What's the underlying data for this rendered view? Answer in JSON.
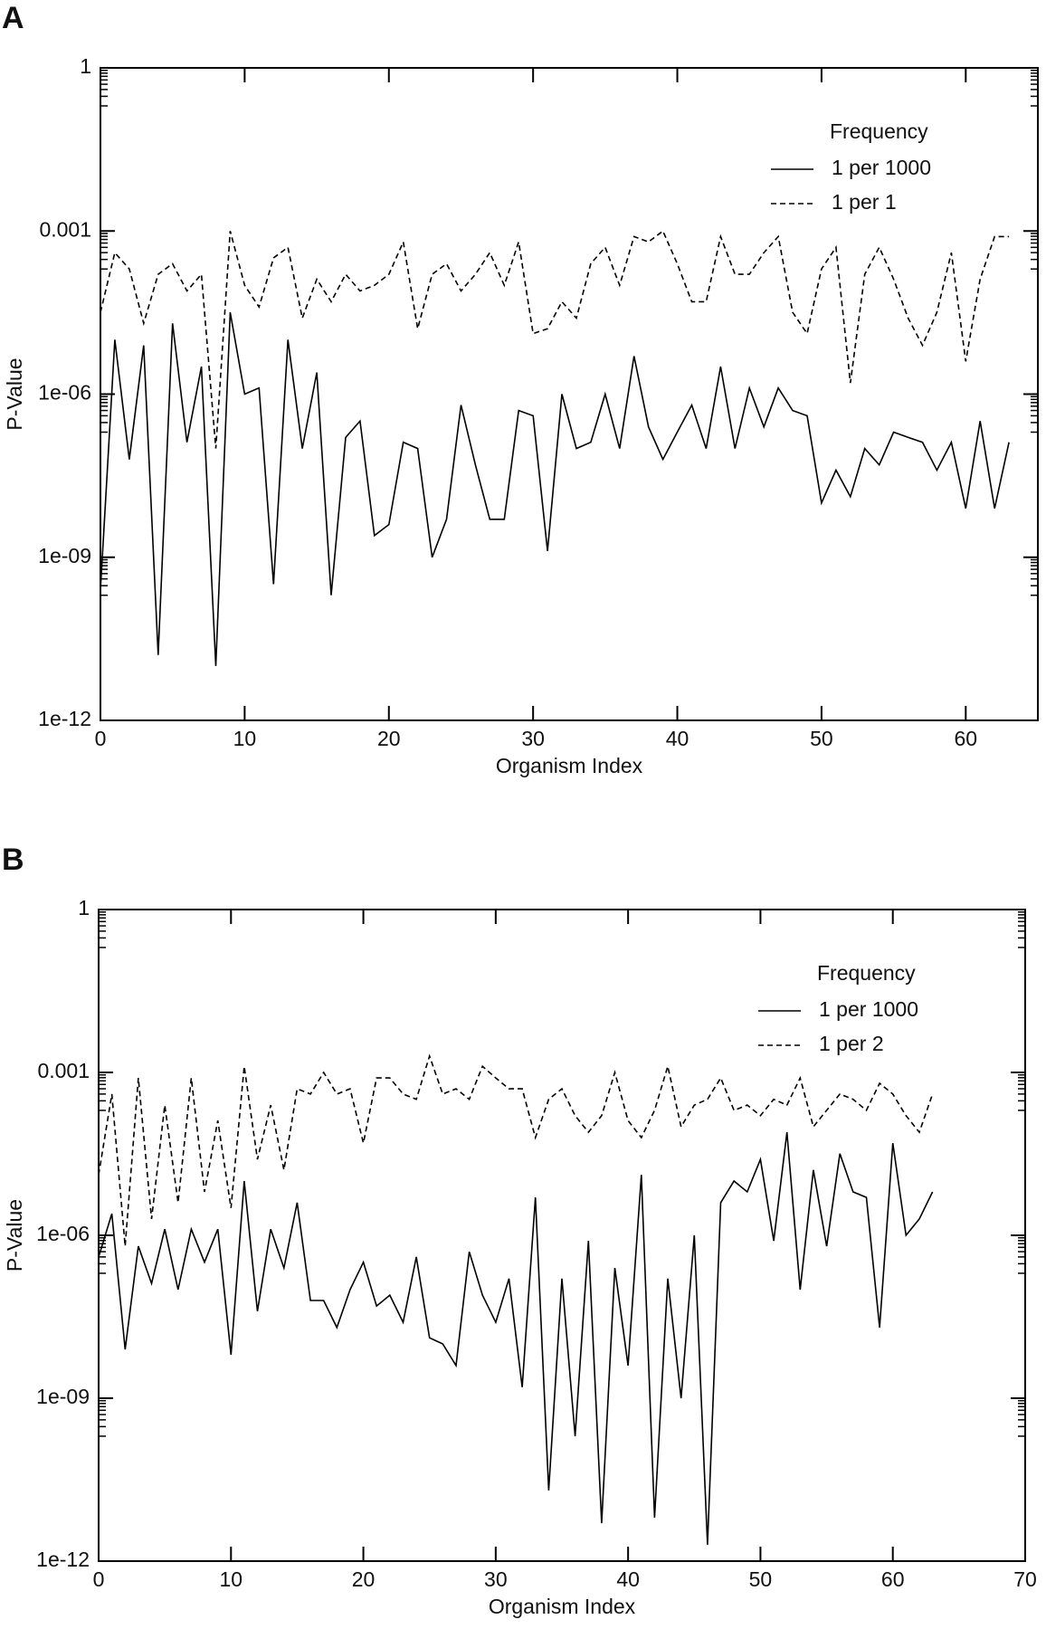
{
  "chart_data": [
    {
      "type": "line",
      "panel_label": "A",
      "xlabel": "Organism Index",
      "ylabel": "P-Value",
      "log_y": true,
      "legend_title": "Frequency",
      "legend": "upper right",
      "xlim": [
        0,
        65
      ],
      "xticks": [
        0,
        10,
        20,
        30,
        40,
        50,
        60
      ],
      "ylim": [
        1e-12,
        1
      ],
      "yticks": [
        {
          "value": 1e-12,
          "label": "1e-12"
        },
        {
          "value": 1e-09,
          "label": "1e-09"
        },
        {
          "value": 1e-06,
          "label": "1e-06"
        },
        0.001,
        1
      ],
      "x": [
        0,
        1,
        2,
        3,
        4,
        5,
        6,
        7,
        8,
        9,
        10,
        11,
        12,
        13,
        14,
        15,
        16,
        17,
        18,
        19,
        20,
        21,
        22,
        23,
        24,
        25,
        26,
        27,
        28,
        29,
        30,
        31,
        32,
        33,
        34,
        35,
        36,
        37,
        38,
        39,
        40,
        41,
        42,
        43,
        44,
        45,
        46,
        47,
        48,
        49,
        50,
        51,
        52,
        53,
        54,
        55,
        56,
        57,
        58,
        59,
        60,
        61,
        62,
        63
      ],
      "series": [
        {
          "name": "1 per 1000",
          "color": "#000000",
          "line_style": "solid",
          "values": [
            2.5e-10,
            1e-05,
            6.3e-08,
            7.9e-06,
            1.6e-11,
            2e-05,
            1.3e-07,
            3.2e-06,
            1e-11,
            3.2e-05,
            1e-06,
            1.3e-06,
            3.2e-10,
            1e-05,
            1e-07,
            2.5e-06,
            2e-10,
            1.6e-07,
            3.2e-07,
            2.5e-09,
            4e-09,
            1.3e-07,
            1e-07,
            1e-09,
            5e-09,
            6.3e-07,
            5e-08,
            5e-09,
            5e-09,
            5e-07,
            4e-07,
            1.3e-09,
            1e-06,
            1e-07,
            1.3e-07,
            1e-06,
            1e-07,
            5e-06,
            2.5e-07,
            6.3e-08,
            2e-07,
            6.3e-07,
            1e-07,
            3.2e-06,
            1e-07,
            1.3e-06,
            2.5e-07,
            1.3e-06,
            5e-07,
            4e-07,
            1e-08,
            4e-08,
            1.3e-08,
            1e-07,
            5e-08,
            2e-07,
            1.6e-07,
            1.3e-07,
            4e-08,
            1.3e-07,
            7.9e-09,
            3.2e-07,
            7.9e-09,
            1.3e-07
          ]
        },
        {
          "name": "1 per 1",
          "color": "#000000",
          "line_style": "dashed",
          "values": [
            3.2e-05,
            0.0004,
            0.0002,
            2e-05,
            0.00016,
            0.00025,
            7.9e-05,
            0.00016,
            1e-07,
            0.001,
            0.0001,
            4e-05,
            0.00032,
            0.0005,
            2.5e-05,
            0.00013,
            5e-05,
            0.00016,
            7.9e-05,
            0.0001,
            0.00016,
            0.00063,
            1.6e-05,
            0.00016,
            0.00025,
            7.9e-05,
            0.00016,
            0.0004,
            0.0001,
            0.00063,
            1.3e-05,
            1.6e-05,
            5e-05,
            2.5e-05,
            0.00025,
            0.0005,
            0.0001,
            0.00079,
            0.00063,
            0.001,
            0.00025,
            5e-05,
            5e-05,
            0.00079,
            0.00016,
            0.00016,
            0.0004,
            0.00079,
            3.2e-05,
            1.3e-05,
            0.0002,
            0.0005,
            1.6e-06,
            0.00016,
            0.0005,
            0.00013,
            2.5e-05,
            7.9e-06,
            3.2e-05,
            0.0004,
            4e-06,
            0.00013,
            0.00079,
            0.00079
          ]
        }
      ]
    },
    {
      "type": "line",
      "panel_label": "B",
      "xlabel": "Organism Index",
      "ylabel": "P-Value",
      "log_y": true,
      "legend_title": "Frequency",
      "legend": "upper right",
      "xlim": [
        0,
        70
      ],
      "xticks": [
        0,
        10,
        20,
        30,
        40,
        50,
        60,
        70
      ],
      "ylim": [
        1e-12,
        1
      ],
      "yticks": [
        {
          "value": 1e-12,
          "label": "1e-12"
        },
        {
          "value": 1e-09,
          "label": "1e-09"
        },
        {
          "value": 1e-06,
          "label": "1e-06"
        },
        0.001,
        1
      ],
      "x": [
        0,
        1,
        2,
        3,
        4,
        5,
        6,
        7,
        8,
        9,
        10,
        11,
        12,
        13,
        14,
        15,
        16,
        17,
        18,
        19,
        20,
        21,
        22,
        23,
        24,
        25,
        26,
        27,
        28,
        29,
        30,
        31,
        32,
        33,
        34,
        35,
        36,
        37,
        38,
        39,
        40,
        41,
        42,
        43,
        44,
        45,
        46,
        47,
        48,
        49,
        50,
        51,
        52,
        53,
        54,
        55,
        56,
        57,
        58,
        59,
        60,
        61,
        62,
        63
      ],
      "series": [
        {
          "name": "1 per 1000",
          "color": "#000000",
          "line_style": "solid",
          "values": [
            4e-07,
            2.5e-06,
            7.9e-09,
            6.3e-07,
            1.3e-07,
            1.3e-06,
            1e-07,
            1.3e-06,
            3.2e-07,
            1.3e-06,
            6.3e-09,
            1e-05,
            4e-08,
            1.3e-06,
            2.5e-07,
            4e-06,
            6.3e-08,
            6.3e-08,
            2e-08,
            1e-07,
            3.2e-07,
            5e-08,
            7.9e-08,
            2.5e-08,
            4e-07,
            1.3e-08,
            1e-08,
            4e-09,
            5e-07,
            7.9e-08,
            2.5e-08,
            1.6e-07,
            1.6e-09,
            5e-06,
            2e-11,
            1.6e-07,
            2e-10,
            7.9e-07,
            5e-12,
            2.5e-07,
            4e-09,
            1.3e-05,
            6.3e-12,
            1.6e-07,
            1e-09,
            1e-06,
            2e-12,
            4e-06,
            1e-05,
            6.3e-06,
            2.5e-05,
            7.9e-07,
            7.9e-05,
            1e-07,
            1.6e-05,
            6.3e-07,
            3.2e-05,
            6.3e-06,
            5e-06,
            2e-08,
            5e-05,
            1e-06,
            2e-06,
            6.3e-06
          ]
        },
        {
          "name": "1 per 2",
          "color": "#000000",
          "line_style": "dashed",
          "values": [
            1.3e-05,
            0.0004,
            6.3e-07,
            0.00079,
            2e-06,
            0.00025,
            4e-06,
            0.00079,
            6.3e-06,
            0.00013,
            3.2e-06,
            0.0013,
            2.5e-05,
            0.00025,
            1.6e-05,
            0.0005,
            0.0004,
            0.001,
            0.0004,
            0.0005,
            5e-05,
            0.00079,
            0.00079,
            0.0004,
            0.00032,
            0.002,
            0.0004,
            0.0005,
            0.00032,
            0.0013,
            0.00079,
            0.0005,
            0.0005,
            6.3e-05,
            0.00032,
            0.0005,
            0.00016,
            7.9e-05,
            0.00016,
            0.001,
            0.00013,
            6.3e-05,
            0.0002,
            0.0013,
            0.0001,
            0.00025,
            0.00032,
            0.00079,
            0.0002,
            0.00025,
            0.00016,
            0.00032,
            0.00025,
            0.00079,
            0.0001,
            0.0002,
            0.0004,
            0.00032,
            0.0002,
            0.00063,
            0.0004,
            0.00016,
            7.9e-05,
            0.0004
          ]
        }
      ]
    }
  ]
}
